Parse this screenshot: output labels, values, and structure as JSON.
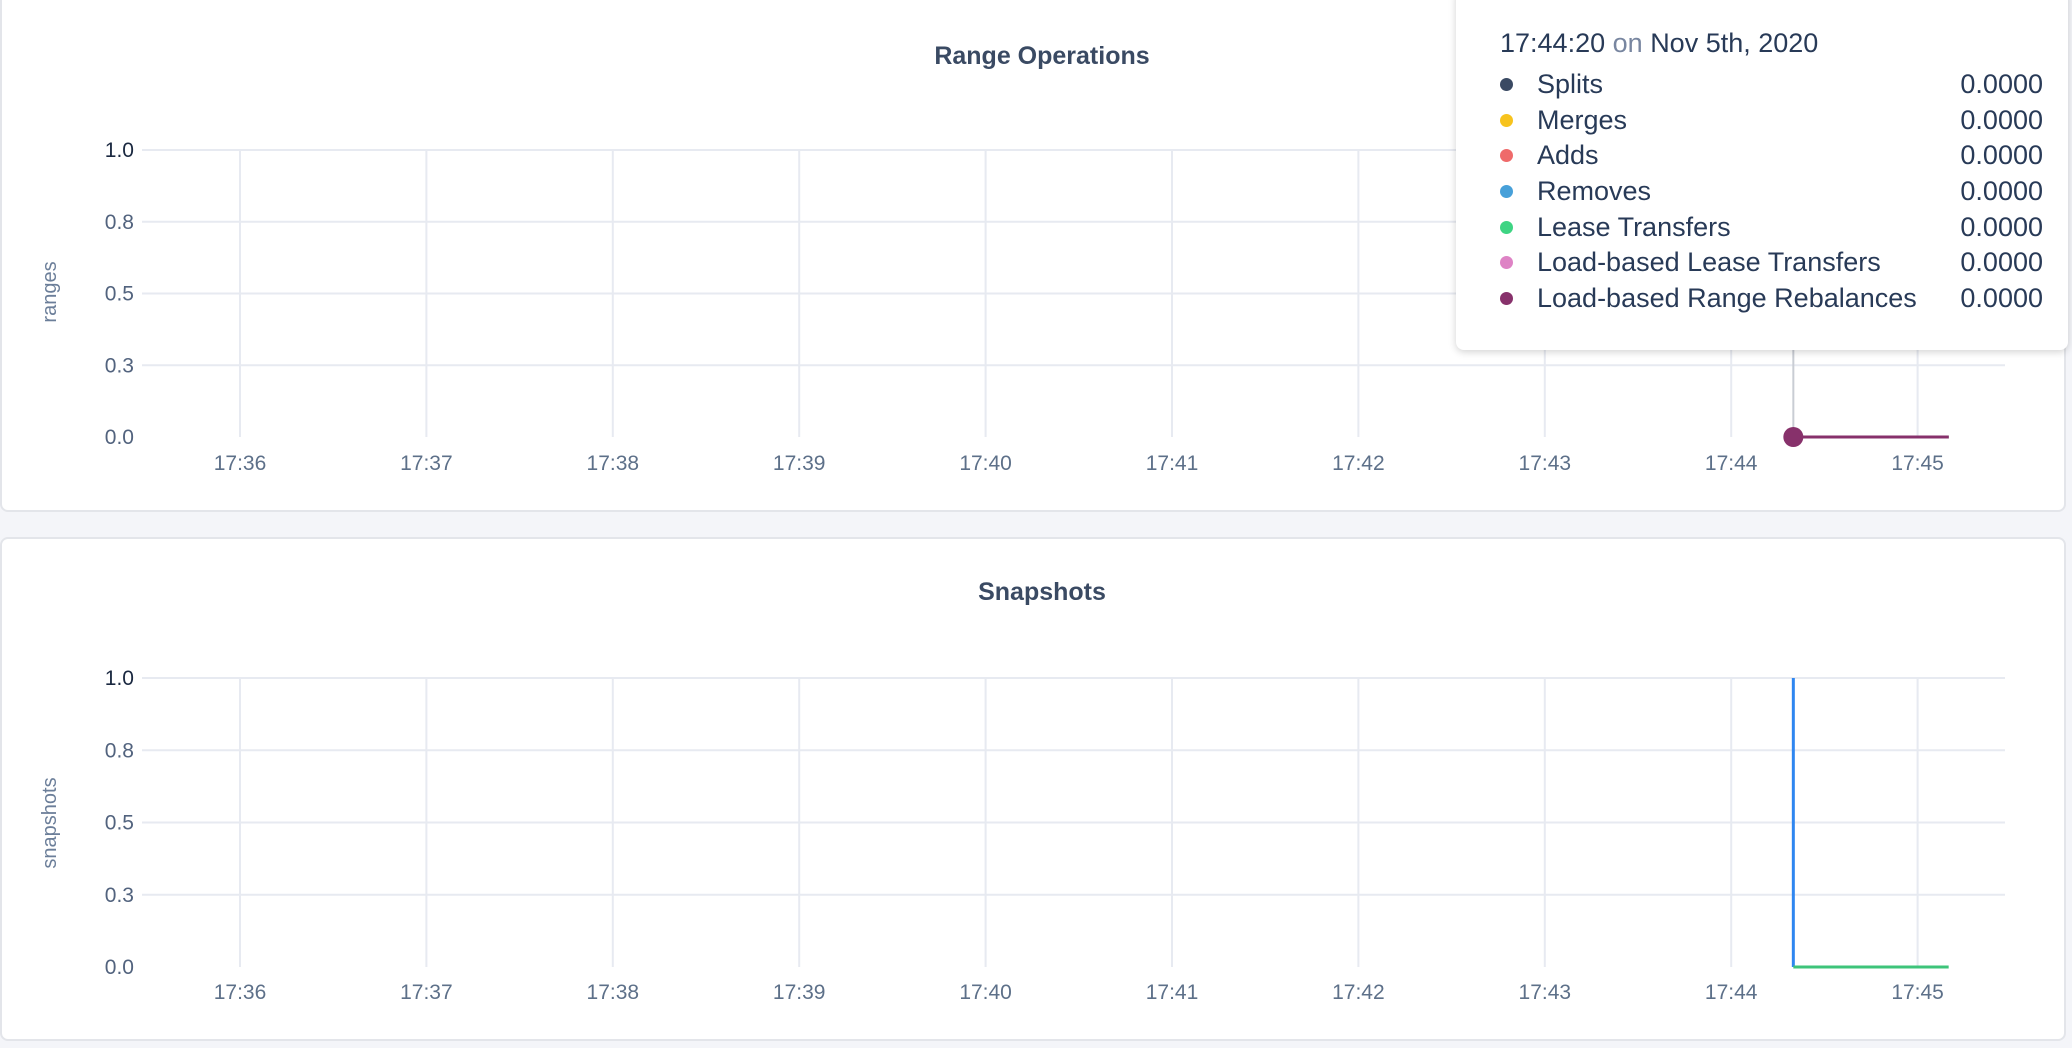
{
  "chart_data": [
    {
      "type": "line",
      "title": "Range Operations",
      "ylabel": "ranges",
      "ylim": [
        0,
        1
      ],
      "yticks": [
        {
          "value": 0,
          "label": "0.0"
        },
        {
          "value": 0.25,
          "label": "0.3"
        },
        {
          "value": 0.5,
          "label": "0.5"
        },
        {
          "value": 0.75,
          "label": "0.8"
        },
        {
          "value": 1,
          "label": "1.0"
        }
      ],
      "xlim": [
        "17:35:25",
        "17:45:35"
      ],
      "xticks": [
        "17:36",
        "17:37",
        "17:38",
        "17:39",
        "17:40",
        "17:41",
        "17:42",
        "17:43",
        "17:44",
        "17:45"
      ],
      "grid": true,
      "series": [
        {
          "name": "Splits",
          "color": "#3a4a63",
          "x": [
            "17:44:20",
            "17:45:10"
          ],
          "y": [
            0,
            0
          ]
        },
        {
          "name": "Merges",
          "color": "#f7c31d",
          "x": [
            "17:44:20",
            "17:45:10"
          ],
          "y": [
            0,
            0
          ]
        },
        {
          "name": "Adds",
          "color": "#ef6a6a",
          "x": [
            "17:44:20",
            "17:45:10"
          ],
          "y": [
            0,
            0
          ]
        },
        {
          "name": "Removes",
          "color": "#47a0d9",
          "x": [
            "17:44:20",
            "17:45:10"
          ],
          "y": [
            0,
            0
          ]
        },
        {
          "name": "Lease Transfers",
          "color": "#3ed483",
          "x": [
            "17:44:20",
            "17:45:10"
          ],
          "y": [
            0,
            0
          ]
        },
        {
          "name": "Load-based Lease Transfers",
          "color": "#de83c5",
          "x": [
            "17:44:20",
            "17:45:10"
          ],
          "y": [
            0,
            0
          ]
        },
        {
          "name": "Load-based Range Rebalances",
          "color": "#87316b",
          "x": [
            "17:44:20",
            "17:45:10"
          ],
          "y": [
            0,
            0
          ]
        }
      ],
      "hover": "17:44:20"
    },
    {
      "type": "line",
      "title": "Snapshots",
      "ylabel": "snapshots",
      "ylim": [
        0,
        1
      ],
      "yticks": [
        {
          "value": 0,
          "label": "0.0"
        },
        {
          "value": 0.25,
          "label": "0.3"
        },
        {
          "value": 0.5,
          "label": "0.5"
        },
        {
          "value": 0.75,
          "label": "0.8"
        },
        {
          "value": 1,
          "label": "1.0"
        }
      ],
      "xlim": [
        "17:35:25",
        "17:45:35"
      ],
      "xticks": [
        "17:36",
        "17:37",
        "17:38",
        "17:39",
        "17:40",
        "17:41",
        "17:42",
        "17:43",
        "17:44",
        "17:45"
      ],
      "grid": true,
      "series": [
        {
          "color": "#2f86f0",
          "x": [
            "17:44:20",
            "17:44:20"
          ],
          "y": [
            1,
            0
          ]
        },
        {
          "color": "#3ec47a",
          "x": [
            "17:44:20",
            "17:45:10"
          ],
          "y": [
            0,
            0
          ]
        }
      ]
    }
  ],
  "tooltip": {
    "time": "17:44:20",
    "on": "on",
    "date": "Nov 5th, 2020",
    "rows": [
      {
        "name": "Splits",
        "value": "0.0000",
        "color": "#3a4a63"
      },
      {
        "name": "Merges",
        "value": "0.0000",
        "color": "#f7c31d"
      },
      {
        "name": "Adds",
        "value": "0.0000",
        "color": "#ef6a6a"
      },
      {
        "name": "Removes",
        "value": "0.0000",
        "color": "#47a0d9"
      },
      {
        "name": "Lease Transfers",
        "value": "0.0000",
        "color": "#3ed483"
      },
      {
        "name": "Load-based Lease Transfers",
        "value": "0.0000",
        "color": "#de83c5"
      },
      {
        "name": "Load-based Range Rebalances",
        "value": "0.0000",
        "color": "#87316b"
      }
    ]
  }
}
